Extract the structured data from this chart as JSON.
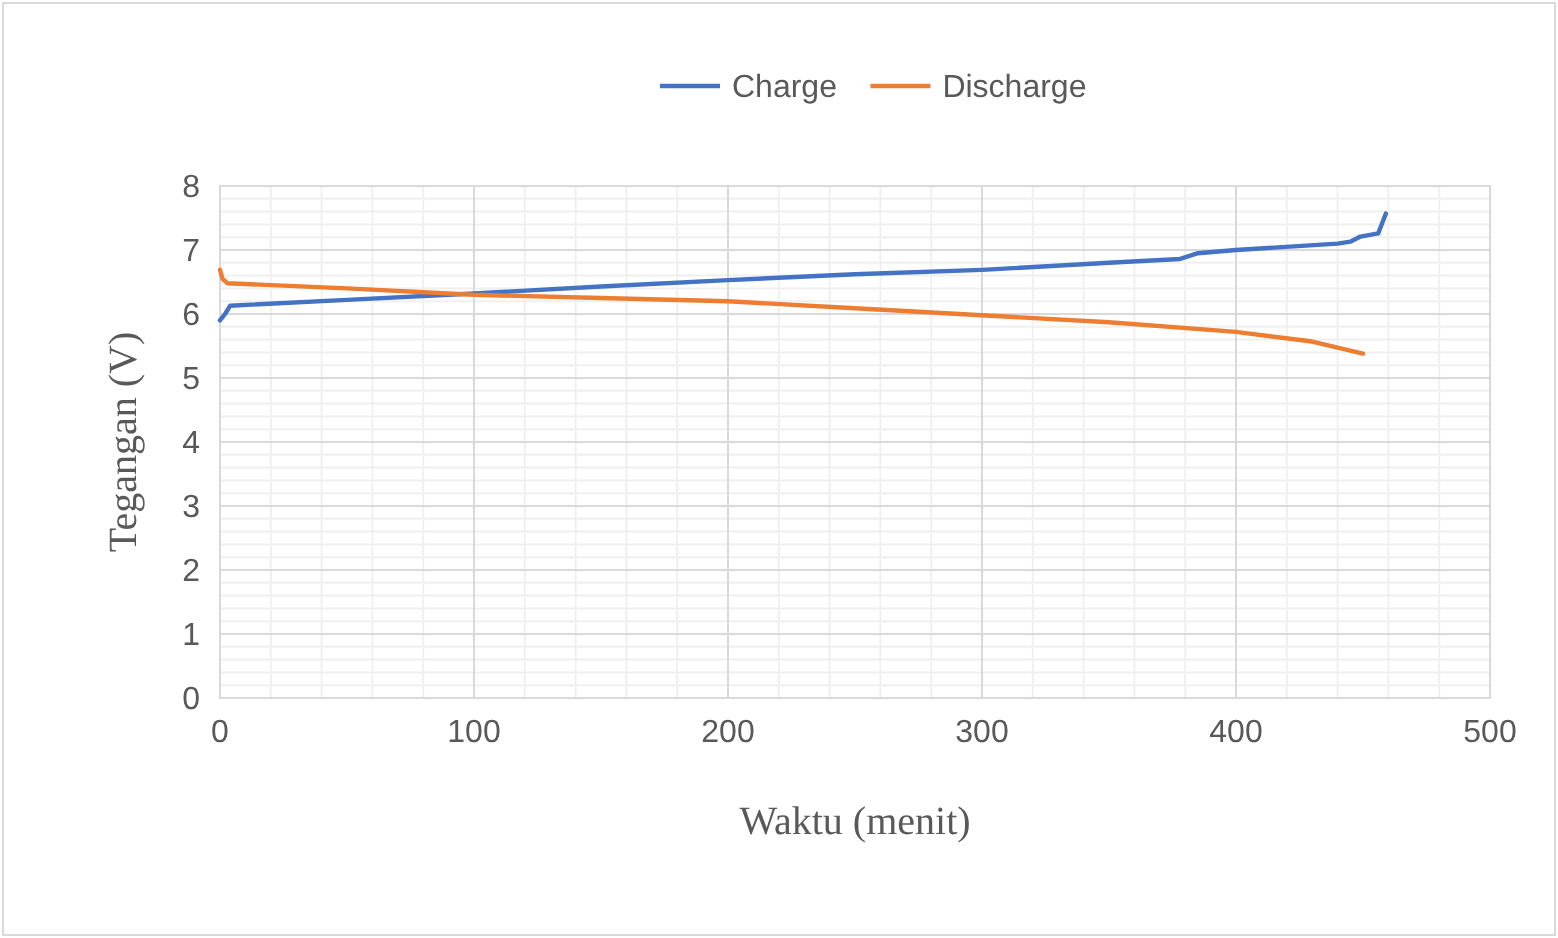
{
  "chart_data": {
    "type": "line",
    "xlabel": "Waktu (menit)",
    "ylabel": "Tegangan (V)",
    "xlim": [
      0,
      500
    ],
    "xticks": [
      0,
      100,
      200,
      300,
      400,
      500
    ],
    "ylim": [
      0,
      8
    ],
    "yticks": [
      0,
      1,
      2,
      3,
      4,
      5,
      6,
      7,
      8
    ],
    "grid": true,
    "legend": "top",
    "marker": "none",
    "line_style": "solid",
    "series": [
      {
        "name": "Charge",
        "color": "#4472c4",
        "x": [
          0,
          2,
          4,
          50,
          100,
          150,
          200,
          250,
          300,
          350,
          378,
          385,
          400,
          440,
          445,
          449,
          456,
          459
        ],
        "values": [
          5.9,
          6.0,
          6.13,
          6.22,
          6.32,
          6.43,
          6.53,
          6.62,
          6.69,
          6.8,
          6.86,
          6.95,
          7.0,
          7.1,
          7.13,
          7.21,
          7.26,
          7.57
        ]
      },
      {
        "name": "Discharge",
        "color": "#ed7d31",
        "x": [
          0,
          1,
          3,
          50,
          100,
          150,
          200,
          250,
          300,
          350,
          400,
          430,
          450
        ],
        "values": [
          6.69,
          6.55,
          6.48,
          6.4,
          6.3,
          6.25,
          6.2,
          6.09,
          5.98,
          5.87,
          5.72,
          5.57,
          5.38
        ]
      }
    ]
  }
}
